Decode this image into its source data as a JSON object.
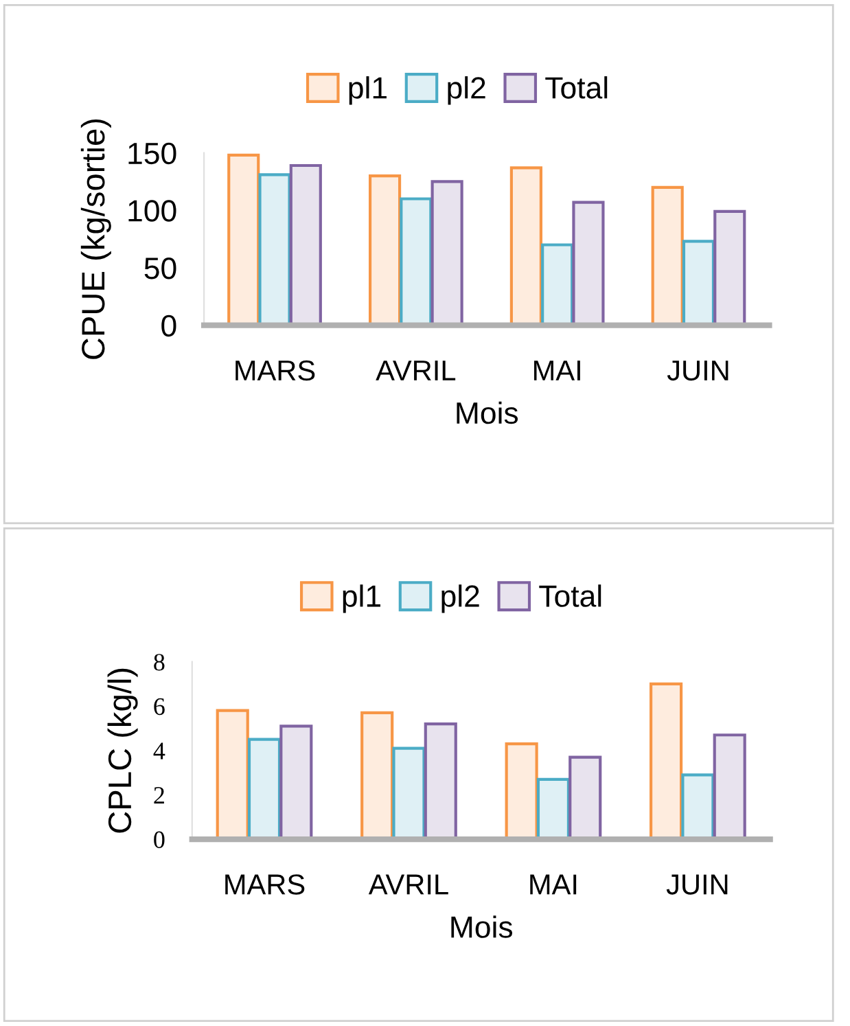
{
  "chart_data": [
    {
      "type": "bar",
      "xlabel": "Mois",
      "ylabel": "CPUE (kg/sortie)",
      "categories": [
        "MARS",
        "AVRIL",
        "MAI",
        "JUIN"
      ],
      "ylim": [
        0,
        150
      ],
      "yticks": [
        0,
        50,
        100,
        150
      ],
      "grid": false,
      "legend": "top",
      "series": [
        {
          "name": "pl1",
          "color": "#f79646",
          "values": [
            148,
            130,
            137,
            120
          ]
        },
        {
          "name": "pl2",
          "color": "#4bacc6",
          "values": [
            131,
            110,
            70,
            73
          ]
        },
        {
          "name": "Total",
          "color": "#8064a2",
          "values": [
            139,
            125,
            107,
            99
          ]
        }
      ]
    },
    {
      "type": "bar",
      "xlabel": "Mois",
      "ylabel": "CPLC (kg/l)",
      "categories": [
        "MARS",
        "AVRIL",
        "MAI",
        "JUIN"
      ],
      "ylim": [
        0,
        8
      ],
      "yticks": [
        0,
        2,
        4,
        6,
        8
      ],
      "grid": false,
      "legend": "top",
      "series": [
        {
          "name": "pl1",
          "color": "#f79646",
          "values": [
            5.8,
            5.7,
            4.3,
            7.0
          ]
        },
        {
          "name": "pl2",
          "color": "#4bacc6",
          "values": [
            4.5,
            4.1,
            2.7,
            2.9
          ]
        },
        {
          "name": "Total",
          "color": "#8064a2",
          "values": [
            5.1,
            5.2,
            3.7,
            4.7
          ]
        }
      ]
    }
  ]
}
